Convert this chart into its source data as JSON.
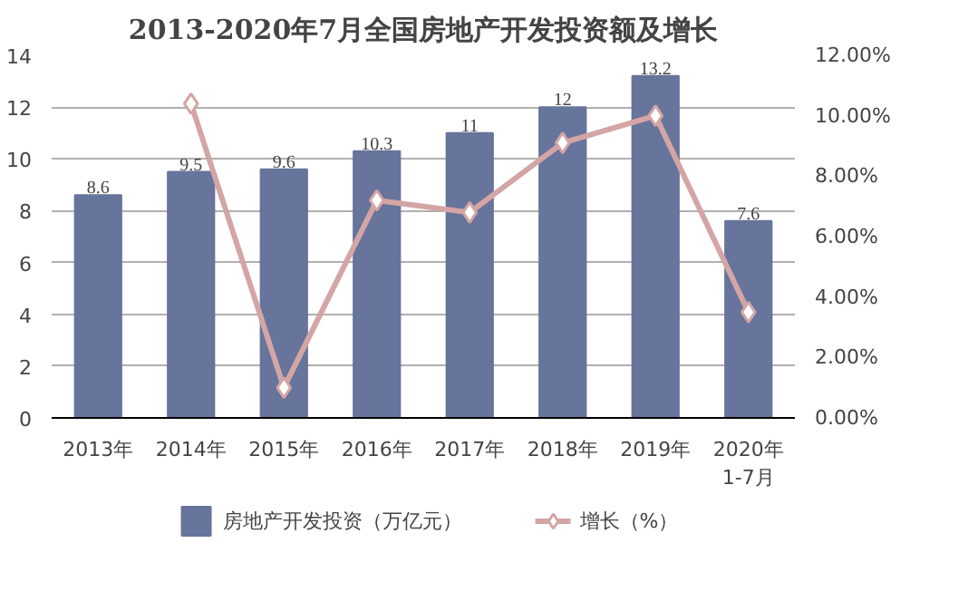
{
  "chart_data": {
    "type": "bar",
    "title": "2013-2020年7月全国房地产开发投资额及增长",
    "categories": [
      "2013年",
      "2014年",
      "2015年",
      "2016年",
      "2017年",
      "2018年",
      "2019年",
      "2020年\n1-7月"
    ],
    "series": [
      {
        "name": "房地产开发投资（万亿元）",
        "color": "#67749b",
        "values": [
          8.6,
          9.5,
          9.6,
          10.3,
          11,
          12,
          13.2,
          7.6
        ],
        "value_labels": [
          "8.6",
          "9.5",
          "9.6",
          "10.3",
          "11",
          "12",
          "13.2",
          "7.6"
        ]
      },
      {
        "name": "增长（%）",
        "type": "line",
        "axis": "y2",
        "color": "#d4a5a5",
        "marker": "diamond",
        "values": [
          null,
          10.4,
          1.0,
          7.2,
          6.8,
          9.1,
          10.0,
          3.5
        ]
      }
    ],
    "ylim": [
      0,
      14
    ],
    "yticks": [
      0,
      2,
      4,
      6,
      8,
      10,
      12,
      14
    ],
    "y2lim": [
      0,
      12
    ],
    "y2ticks": [
      {
        "value": 0,
        "label": "0.00%"
      },
      {
        "value": 2,
        "label": "2.00%"
      },
      {
        "value": 4,
        "label": "4.00%"
      },
      {
        "value": 6,
        "label": "6.00%"
      },
      {
        "value": 8,
        "label": "8.00%"
      },
      {
        "value": 10,
        "label": "10.00%"
      },
      {
        "value": 12,
        "label": "12.00%"
      }
    ],
    "grid": "y",
    "legend": "bottom"
  }
}
